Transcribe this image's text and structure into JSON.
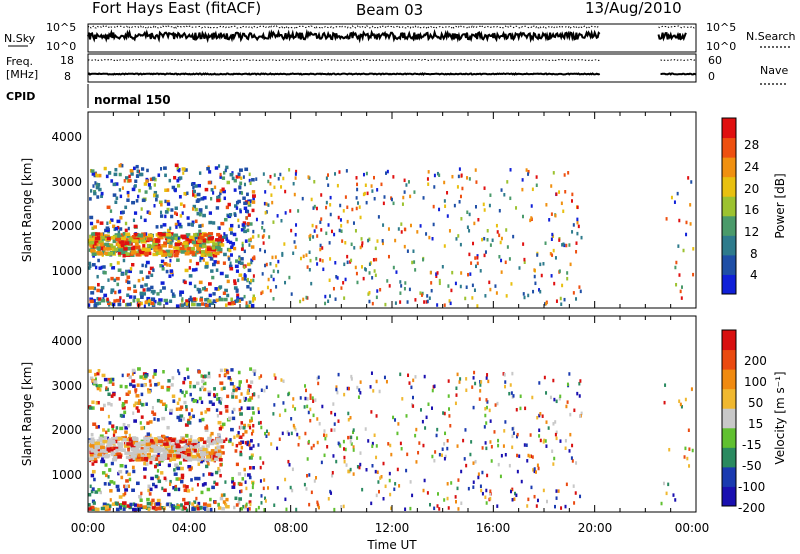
{
  "header": {
    "station": "Fort Hays East (fitACF)",
    "beam": "Beam 03",
    "date": "13/Aug/2010"
  },
  "top_panels": {
    "nsky_label": "N.Sky",
    "nsearch_label": "N.Search",
    "noise_ticks": [
      "10^5",
      "10^0"
    ],
    "freq_label_1": "Freq.",
    "freq_label_2": "[MHz]",
    "freq_ticks": [
      "18",
      "8"
    ],
    "nave_label": "Nave",
    "nave_ticks": [
      "60",
      "0"
    ],
    "cpid_label": "CPID",
    "cpid_value": "normal 150"
  },
  "chart_data": [
    {
      "type": "heatmap",
      "title": "",
      "ylabel": "Slant Range [km]",
      "xlabel": "",
      "x_range_hours": [
        0,
        24
      ],
      "ylim": [
        180,
        4600
      ],
      "y_ticks": [
        "4000",
        "3000",
        "2000",
        "1000"
      ],
      "colorbar": {
        "label": "Power [dB]",
        "ticks": [
          "28",
          "24",
          "20",
          "16",
          "12",
          "8",
          "4"
        ],
        "range": [
          0,
          30
        ],
        "colors": [
          "#1020d8",
          "#1f4fa6",
          "#2e7b8c",
          "#4a9a6a",
          "#9cc230",
          "#e8c010",
          "#f09010",
          "#ee5010",
          "#e01010"
        ]
      }
    },
    {
      "type": "heatmap",
      "title": "",
      "ylabel": "Slant Range [km]",
      "xlabel": "Time UT",
      "x_ticks": [
        "00:00",
        "04:00",
        "08:00",
        "12:00",
        "16:00",
        "20:00",
        "00:00"
      ],
      "x_range_hours": [
        0,
        24
      ],
      "ylim": [
        180,
        4600
      ],
      "y_ticks": [
        "4000",
        "3000",
        "2000",
        "1000"
      ],
      "colorbar": {
        "label": "Velocity [m s⁻¹]",
        "ticks": [
          "200",
          "100",
          "50",
          "15",
          "-15",
          "-50",
          "-100",
          "-200"
        ],
        "range": [
          -250,
          250
        ],
        "colors": [
          "#d81010",
          "#ea4a10",
          "#f08a10",
          "#f0b830",
          "#c8c8c8",
          "#60c030",
          "#2a8a60",
          "#1a3ab0",
          "#1a10b0"
        ]
      }
    }
  ]
}
